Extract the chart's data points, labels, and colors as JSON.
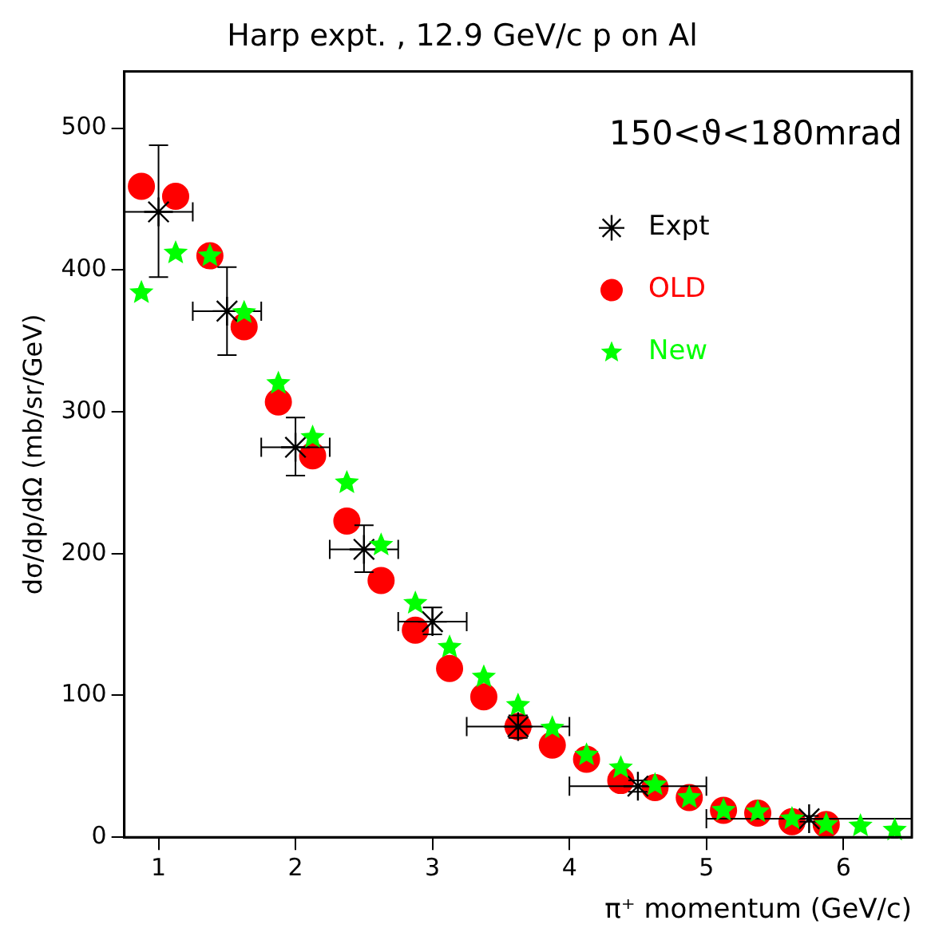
{
  "chart_data": {
    "type": "scatter",
    "title": "Harp expt. , 12.9 GeV/c p on Al",
    "xlabel": "π⁺ momentum (GeV/c)",
    "ylabel": "dσ/dp/dΩ (mb/sr/GeV)",
    "annotations": [
      "150<ϑ<180mrad"
    ],
    "xlim": [
      0.75,
      6.5
    ],
    "xticks": [
      1,
      2,
      3,
      4,
      5,
      6
    ],
    "ylim": [
      0,
      540
    ],
    "yticks": [
      0,
      100,
      200,
      300,
      400,
      500
    ],
    "grid": false,
    "legend": "top right",
    "series": [
      {
        "name": "Expt",
        "color": "#000000",
        "marker": "cross",
        "x": [
          1.0,
          1.5,
          2.0,
          2.5,
          3.0,
          3.625,
          4.5,
          5.75
        ],
        "values": [
          441,
          371,
          275,
          203,
          152,
          78,
          36,
          13
        ],
        "errors": [
          [
            395,
            488
          ],
          [
            340,
            402
          ],
          [
            255,
            296
          ],
          [
            187,
            220
          ],
          [
            143,
            162
          ],
          [
            70,
            86
          ],
          [
            32,
            40
          ],
          [
            11,
            15
          ]
        ],
        "xerrors": [
          [
            0.75,
            1.25
          ],
          [
            1.25,
            1.75
          ],
          [
            1.75,
            2.25
          ],
          [
            2.25,
            2.75
          ],
          [
            2.75,
            3.25
          ],
          [
            3.25,
            4.0
          ],
          [
            4.0,
            5.0
          ],
          [
            5.0,
            6.5
          ]
        ]
      },
      {
        "name": "OLD",
        "color": "#ff0000",
        "marker": "circle",
        "x": [
          0.875,
          1.125,
          1.375,
          1.625,
          1.875,
          2.125,
          2.375,
          2.625,
          2.875,
          3.125,
          3.375,
          3.625,
          3.875,
          4.125,
          4.375,
          4.625,
          4.875,
          5.125,
          5.375,
          5.625,
          5.875
        ],
        "values": [
          459,
          452,
          410,
          360,
          307,
          269,
          223,
          181,
          146,
          119,
          99,
          78,
          65,
          55,
          40,
          35,
          28,
          19,
          17,
          11,
          9
        ]
      },
      {
        "name": "New",
        "color": "#00ff00",
        "marker": "star",
        "x": [
          0.875,
          1.125,
          1.375,
          1.625,
          1.875,
          2.125,
          2.375,
          2.625,
          2.875,
          3.125,
          3.375,
          3.625,
          3.875,
          4.125,
          4.375,
          4.625,
          4.875,
          5.125,
          5.375,
          5.625,
          5.875,
          6.125,
          6.375
        ],
        "values": [
          384,
          412,
          410,
          370,
          320,
          282,
          250,
          206,
          165,
          134,
          113,
          93,
          77,
          58,
          49,
          37,
          28,
          19,
          18,
          13,
          9,
          8,
          5
        ]
      }
    ]
  }
}
